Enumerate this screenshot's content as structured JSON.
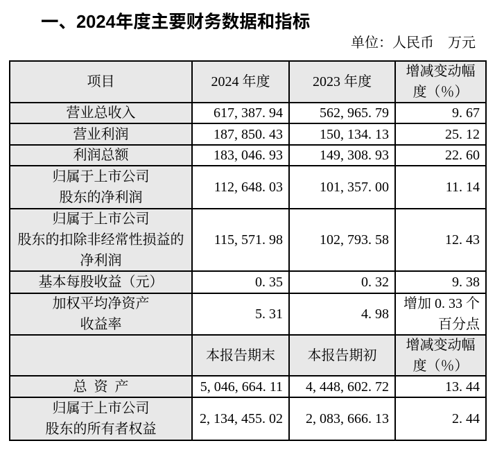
{
  "heading": "一、2024年度主要财务数据和指标",
  "unit_note": "单位：人民币　万元",
  "table": {
    "colors": {
      "header_bg": "#e8e8e8",
      "border": "#000000",
      "text": "#000000"
    },
    "columns": {
      "item": "项目",
      "y2024": "2024 年度",
      "y2023": "2023 年度",
      "change": "增减变动幅度（％）"
    },
    "period_rows": [
      {
        "label": "营业总收入",
        "y2024": "617, 387. 94",
        "y2023": "562, 965. 79",
        "change": "9. 67"
      },
      {
        "label": "营业利润",
        "y2024": "187, 850. 43",
        "y2023": "150, 134. 13",
        "change": "25. 12"
      },
      {
        "label": "利润总额",
        "y2024": "183, 046. 93",
        "y2023": "149, 308. 93",
        "change": "22. 60"
      },
      {
        "label": "归属于上市公司\n股东的净利润",
        "y2024": "112, 648. 03",
        "y2023": "101, 357. 00",
        "change": "11. 14"
      },
      {
        "label": "归属于上市公司\n股东的扣除非经常性损益的净利润",
        "y2024": "115, 571. 98",
        "y2023": "102, 793. 58",
        "change": "12. 43"
      },
      {
        "label": "基本每股收益（元）",
        "y2024": "0. 35",
        "y2023": "0. 32",
        "change": "9. 38"
      },
      {
        "label": "加权平均净资产\n收益率",
        "y2024": "5. 31",
        "y2023": "4. 98",
        "change": "增加 0. 33 个百分点"
      }
    ],
    "section_header": {
      "item": "",
      "end": "本报告期末",
      "begin": "本报告期初",
      "change": "增减变动幅度（％）"
    },
    "position_rows": [
      {
        "label": "总 资 产",
        "end": "5, 046, 664. 11",
        "begin": "4, 448, 602. 72",
        "change": "13. 44"
      },
      {
        "label": "归属于上市公司\n股东的所有者权益",
        "end": "2, 134, 455. 02",
        "begin": "2, 083, 666. 13",
        "change": "2. 44"
      }
    ]
  }
}
